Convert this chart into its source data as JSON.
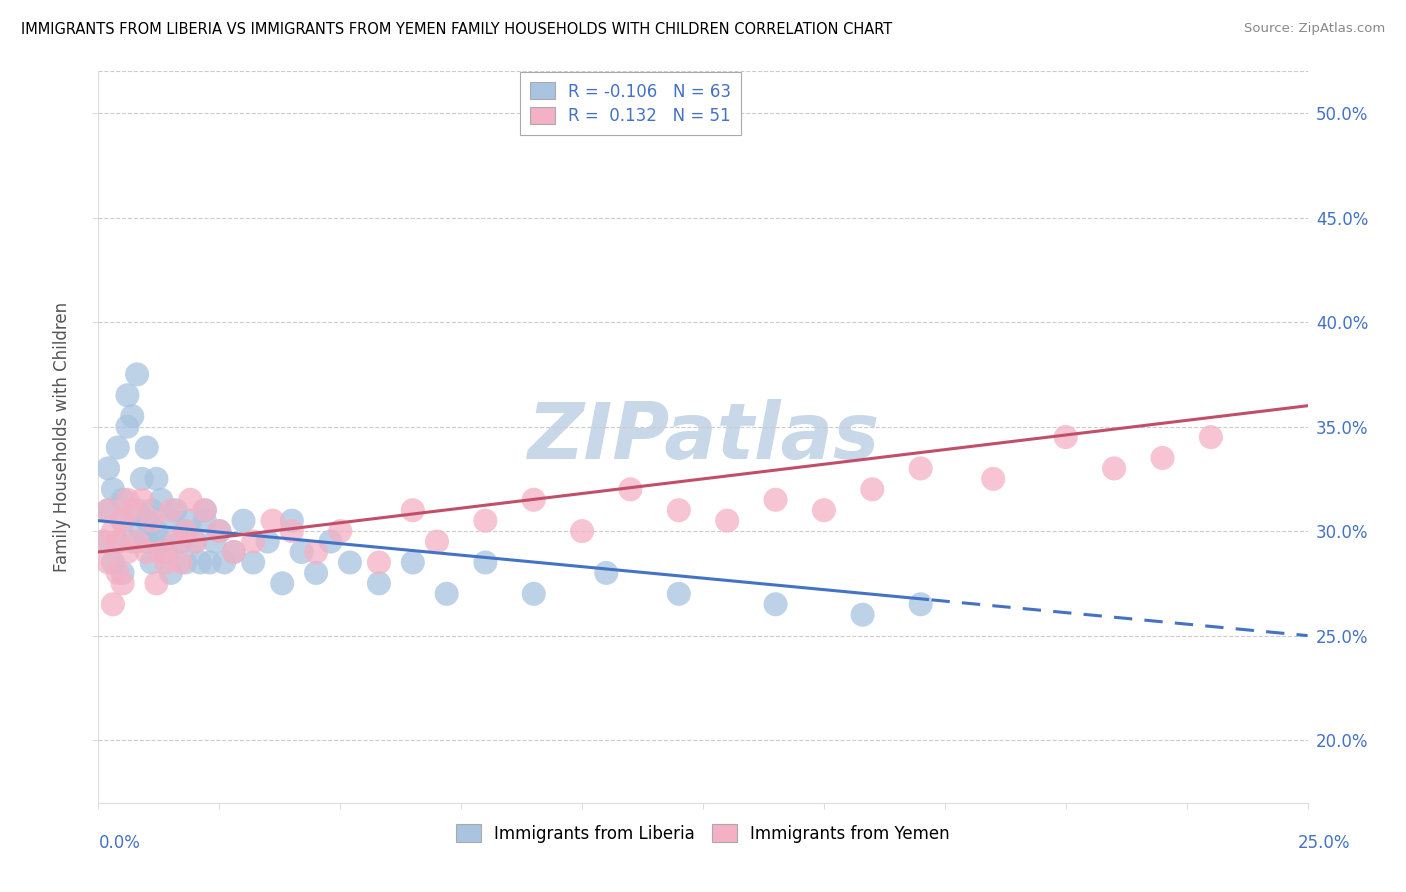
{
  "title": "IMMIGRANTS FROM LIBERIA VS IMMIGRANTS FROM YEMEN FAMILY HOUSEHOLDS WITH CHILDREN CORRELATION CHART",
  "source": "Source: ZipAtlas.com",
  "ylabel": "Family Households with Children",
  "liberia_color": "#a8c4e0",
  "liberia_edge_color": "#7aa8cc",
  "yemen_color": "#f4b0c4",
  "yemen_edge_color": "#e080a0",
  "liberia_line_color": "#4472c4",
  "yemen_line_color": "#c0506a",
  "watermark_color": "#c8d8e8",
  "xlim": [
    0.0,
    0.25
  ],
  "ylim": [
    0.17,
    0.52
  ],
  "y_ticks": [
    0.2,
    0.25,
    0.3,
    0.35,
    0.4,
    0.45,
    0.5
  ],
  "liberia_R": -0.106,
  "liberia_N": 63,
  "yemen_R": 0.132,
  "yemen_N": 51,
  "liberia_scatter_x": [
    0.001,
    0.002,
    0.002,
    0.003,
    0.003,
    0.004,
    0.004,
    0.005,
    0.005,
    0.005,
    0.006,
    0.006,
    0.007,
    0.007,
    0.008,
    0.008,
    0.009,
    0.009,
    0.01,
    0.01,
    0.01,
    0.011,
    0.011,
    0.012,
    0.012,
    0.013,
    0.013,
    0.014,
    0.015,
    0.015,
    0.016,
    0.017,
    0.018,
    0.018,
    0.019,
    0.02,
    0.021,
    0.022,
    0.022,
    0.023,
    0.024,
    0.025,
    0.026,
    0.028,
    0.03,
    0.032,
    0.035,
    0.038,
    0.04,
    0.042,
    0.045,
    0.048,
    0.052,
    0.058,
    0.065,
    0.072,
    0.08,
    0.09,
    0.105,
    0.12,
    0.14,
    0.158,
    0.17
  ],
  "liberia_scatter_y": [
    0.295,
    0.31,
    0.33,
    0.285,
    0.32,
    0.34,
    0.295,
    0.305,
    0.315,
    0.28,
    0.35,
    0.365,
    0.355,
    0.295,
    0.375,
    0.31,
    0.3,
    0.325,
    0.305,
    0.295,
    0.34,
    0.285,
    0.31,
    0.3,
    0.325,
    0.295,
    0.315,
    0.29,
    0.305,
    0.28,
    0.31,
    0.295,
    0.3,
    0.285,
    0.305,
    0.295,
    0.285,
    0.305,
    0.31,
    0.285,
    0.295,
    0.3,
    0.285,
    0.29,
    0.305,
    0.285,
    0.295,
    0.275,
    0.305,
    0.29,
    0.28,
    0.295,
    0.285,
    0.275,
    0.285,
    0.27,
    0.285,
    0.27,
    0.28,
    0.27,
    0.265,
    0.26,
    0.265
  ],
  "yemen_scatter_x": [
    0.001,
    0.002,
    0.002,
    0.003,
    0.003,
    0.004,
    0.004,
    0.005,
    0.005,
    0.006,
    0.006,
    0.007,
    0.008,
    0.009,
    0.01,
    0.011,
    0.012,
    0.013,
    0.014,
    0.015,
    0.016,
    0.017,
    0.018,
    0.019,
    0.02,
    0.022,
    0.025,
    0.028,
    0.032,
    0.036,
    0.04,
    0.045,
    0.05,
    0.058,
    0.065,
    0.07,
    0.08,
    0.09,
    0.1,
    0.11,
    0.12,
    0.13,
    0.14,
    0.15,
    0.16,
    0.17,
    0.185,
    0.2,
    0.21,
    0.22,
    0.23
  ],
  "yemen_scatter_y": [
    0.295,
    0.285,
    0.31,
    0.265,
    0.3,
    0.28,
    0.295,
    0.305,
    0.275,
    0.315,
    0.29,
    0.31,
    0.295,
    0.315,
    0.29,
    0.305,
    0.275,
    0.29,
    0.285,
    0.31,
    0.295,
    0.285,
    0.3,
    0.315,
    0.295,
    0.31,
    0.3,
    0.29,
    0.295,
    0.305,
    0.3,
    0.29,
    0.3,
    0.285,
    0.31,
    0.295,
    0.305,
    0.315,
    0.3,
    0.32,
    0.31,
    0.305,
    0.315,
    0.31,
    0.32,
    0.33,
    0.325,
    0.345,
    0.33,
    0.335,
    0.345
  ]
}
